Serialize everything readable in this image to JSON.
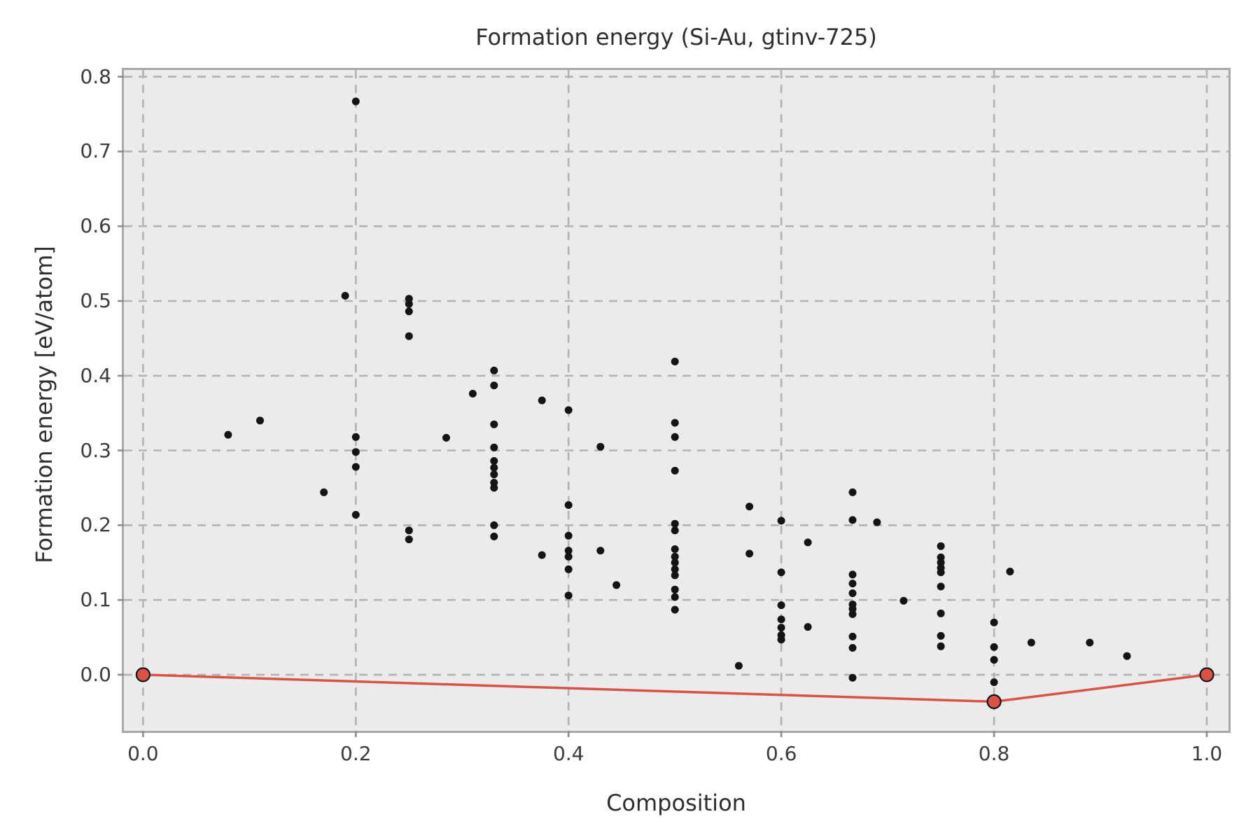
{
  "chart_data": {
    "type": "scatter",
    "title": "Formation energy (Si-Au, gtinv-725)",
    "xlabel": "Composition",
    "ylabel": "Formation energy [eV/atom]",
    "xlim": [
      -0.018,
      1.0204
    ],
    "ylim": [
      -0.075,
      0.809
    ],
    "grid": "dashed",
    "legend": null,
    "xticks": {
      "values": [
        0.0,
        0.2,
        0.4,
        0.6,
        0.8,
        1.0
      ],
      "labels": [
        "0.0",
        "0.2",
        "0.4",
        "0.6",
        "0.8",
        "1.0"
      ]
    },
    "yticks": {
      "values": [
        0.0,
        0.1,
        0.2,
        0.3,
        0.4,
        0.5,
        0.6,
        0.7,
        0.8
      ],
      "labels": [
        "0.0",
        "0.1",
        "0.2",
        "0.3",
        "0.4",
        "0.5",
        "0.6",
        "0.7",
        "0.8"
      ]
    },
    "colors": {
      "axes_bg": "#ebebeb",
      "grid": "#b3b3b3",
      "spine": "#a8a8a8",
      "scatter": "#141414",
      "hull": "#d95349",
      "text": "#3b3b3b"
    },
    "series": [
      {
        "name": "structure-energies",
        "type": "scatter",
        "color": "#141414",
        "points": [
          [
            0.08,
            0.321
          ],
          [
            0.11,
            0.34
          ],
          [
            0.17,
            0.244
          ],
          [
            0.19,
            0.507
          ],
          [
            0.2,
            0.767
          ],
          [
            0.2,
            0.318
          ],
          [
            0.2,
            0.298
          ],
          [
            0.2,
            0.278
          ],
          [
            0.2,
            0.214
          ],
          [
            0.25,
            0.503
          ],
          [
            0.25,
            0.496
          ],
          [
            0.25,
            0.486
          ],
          [
            0.25,
            0.453
          ],
          [
            0.25,
            0.193
          ],
          [
            0.25,
            0.181
          ],
          [
            0.285,
            0.317
          ],
          [
            0.31,
            0.376
          ],
          [
            0.33,
            0.407
          ],
          [
            0.33,
            0.387
          ],
          [
            0.33,
            0.335
          ],
          [
            0.33,
            0.304
          ],
          [
            0.33,
            0.286
          ],
          [
            0.33,
            0.277
          ],
          [
            0.33,
            0.268
          ],
          [
            0.33,
            0.257
          ],
          [
            0.33,
            0.25
          ],
          [
            0.33,
            0.2
          ],
          [
            0.33,
            0.185
          ],
          [
            0.375,
            0.367
          ],
          [
            0.375,
            0.16
          ],
          [
            0.4,
            0.354
          ],
          [
            0.4,
            0.227
          ],
          [
            0.4,
            0.186
          ],
          [
            0.4,
            0.166
          ],
          [
            0.4,
            0.158
          ],
          [
            0.4,
            0.141
          ],
          [
            0.4,
            0.106
          ],
          [
            0.43,
            0.305
          ],
          [
            0.43,
            0.166
          ],
          [
            0.445,
            0.12
          ],
          [
            0.5,
            0.419
          ],
          [
            0.5,
            0.337
          ],
          [
            0.5,
            0.318
          ],
          [
            0.5,
            0.273
          ],
          [
            0.5,
            0.202
          ],
          [
            0.5,
            0.193
          ],
          [
            0.5,
            0.168
          ],
          [
            0.5,
            0.158
          ],
          [
            0.5,
            0.15
          ],
          [
            0.5,
            0.141
          ],
          [
            0.5,
            0.133
          ],
          [
            0.5,
            0.114
          ],
          [
            0.5,
            0.104
          ],
          [
            0.5,
            0.087
          ],
          [
            0.56,
            0.012
          ],
          [
            0.57,
            0.225
          ],
          [
            0.57,
            0.162
          ],
          [
            0.6,
            0.206
          ],
          [
            0.6,
            0.137
          ],
          [
            0.6,
            0.093
          ],
          [
            0.6,
            0.074
          ],
          [
            0.6,
            0.063
          ],
          [
            0.6,
            0.053
          ],
          [
            0.6,
            0.047
          ],
          [
            0.625,
            0.177
          ],
          [
            0.625,
            0.064
          ],
          [
            0.667,
            0.244
          ],
          [
            0.667,
            0.207
          ],
          [
            0.667,
            0.134
          ],
          [
            0.667,
            0.122
          ],
          [
            0.667,
            0.109
          ],
          [
            0.667,
            0.094
          ],
          [
            0.667,
            0.088
          ],
          [
            0.667,
            0.081
          ],
          [
            0.667,
            0.051
          ],
          [
            0.667,
            0.036
          ],
          [
            0.667,
            -0.004
          ],
          [
            0.69,
            0.204
          ],
          [
            0.715,
            0.099
          ],
          [
            0.75,
            0.172
          ],
          [
            0.75,
            0.157
          ],
          [
            0.75,
            0.15
          ],
          [
            0.75,
            0.143
          ],
          [
            0.75,
            0.137
          ],
          [
            0.75,
            0.118
          ],
          [
            0.75,
            0.082
          ],
          [
            0.75,
            0.052
          ],
          [
            0.75,
            0.038
          ],
          [
            0.8,
            0.07
          ],
          [
            0.8,
            0.037
          ],
          [
            0.8,
            0.02
          ],
          [
            0.8,
            -0.01
          ],
          [
            0.815,
            0.138
          ],
          [
            0.835,
            0.043
          ],
          [
            0.89,
            0.043
          ],
          [
            0.925,
            0.025
          ]
        ]
      },
      {
        "name": "convex-hull",
        "type": "line_markers",
        "color": "#d95349",
        "points": [
          [
            0.0,
            0.0
          ],
          [
            0.8,
            -0.036
          ],
          [
            1.0,
            0.0
          ]
        ]
      }
    ]
  }
}
